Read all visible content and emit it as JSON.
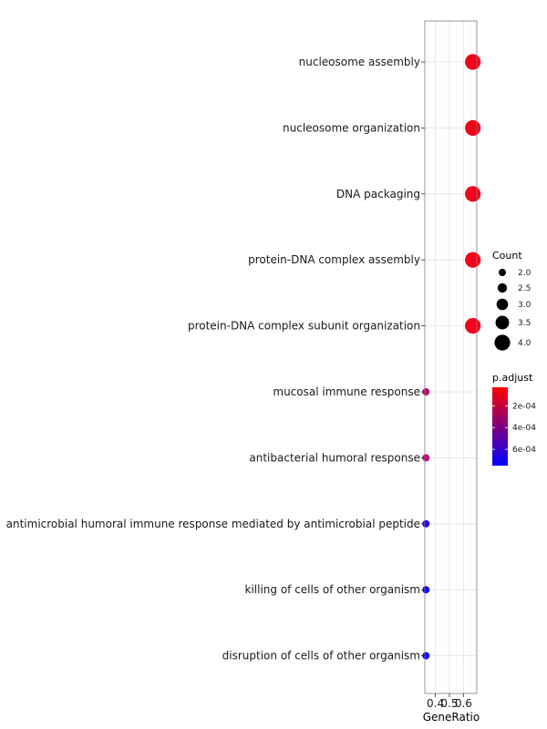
{
  "chart_data": {
    "type": "scatter",
    "xlabel": "GeneRatio",
    "x_ticks": [
      0.4,
      0.5,
      0.6
    ],
    "x_tick_labels": [
      "0.4",
      "0.5",
      "0.6"
    ],
    "xlim": [
      0.325,
      0.695
    ],
    "grid": true,
    "categories": [
      "nucleosome assembly",
      "nucleosome organization",
      "DNA packaging",
      "protein-DNA complex assembly",
      "protein-DNA complex subunit organization",
      "mucosal immune response",
      "antibacterial humoral response",
      "antimicrobial humoral immune response mediated by antimicrobial peptide",
      "killing of cells of other organism",
      "disruption of cells of other organism"
    ],
    "points": [
      {
        "term": "nucleosome assembly",
        "gene_ratio": 0.667,
        "count": 4,
        "p_adjust": 3e-05,
        "color": "#f5001a"
      },
      {
        "term": "nucleosome organization",
        "gene_ratio": 0.667,
        "count": 4,
        "p_adjust": 3e-05,
        "color": "#f5001a"
      },
      {
        "term": "DNA packaging",
        "gene_ratio": 0.667,
        "count": 4,
        "p_adjust": 3e-05,
        "color": "#f5001a"
      },
      {
        "term": "protein-DNA complex assembly",
        "gene_ratio": 0.667,
        "count": 4,
        "p_adjust": 3e-05,
        "color": "#f5001a"
      },
      {
        "term": "protein-DNA complex subunit organization",
        "gene_ratio": 0.667,
        "count": 4,
        "p_adjust": 3e-05,
        "color": "#f5001a"
      },
      {
        "term": "mucosal immune response",
        "gene_ratio": 0.333,
        "count": 2,
        "p_adjust": 0.00033,
        "color": "#c3007e"
      },
      {
        "term": "antibacterial humoral response",
        "gene_ratio": 0.333,
        "count": 2,
        "p_adjust": 0.00033,
        "color": "#c3007e"
      },
      {
        "term": "antimicrobial humoral immune response mediated by antimicrobial peptide",
        "gene_ratio": 0.333,
        "count": 2,
        "p_adjust": 0.0007,
        "color": "#2200e8"
      },
      {
        "term": "killing of cells of other organism",
        "gene_ratio": 0.333,
        "count": 2,
        "p_adjust": 0.00075,
        "color": "#0c00f2"
      },
      {
        "term": "disruption of cells of other organism",
        "gene_ratio": 0.333,
        "count": 2,
        "p_adjust": 0.00075,
        "color": "#0c00f2"
      }
    ],
    "legend_count": {
      "title": "Count",
      "values": [
        2.0,
        2.5,
        3.0,
        3.5,
        4.0
      ],
      "labels": [
        "2.0",
        "2.5",
        "3.0",
        "3.5",
        "4.0"
      ]
    },
    "legend_padjust": {
      "title": "p.adjust",
      "labels": [
        "2e-04",
        "4e-04",
        "6e-04"
      ],
      "values": [
        0.0002,
        0.0004,
        0.0006
      ],
      "range": [
        3e-05,
        0.00075
      ],
      "low_color": "#ff0000",
      "high_color": "#0000ff"
    },
    "legend_position": "right"
  }
}
